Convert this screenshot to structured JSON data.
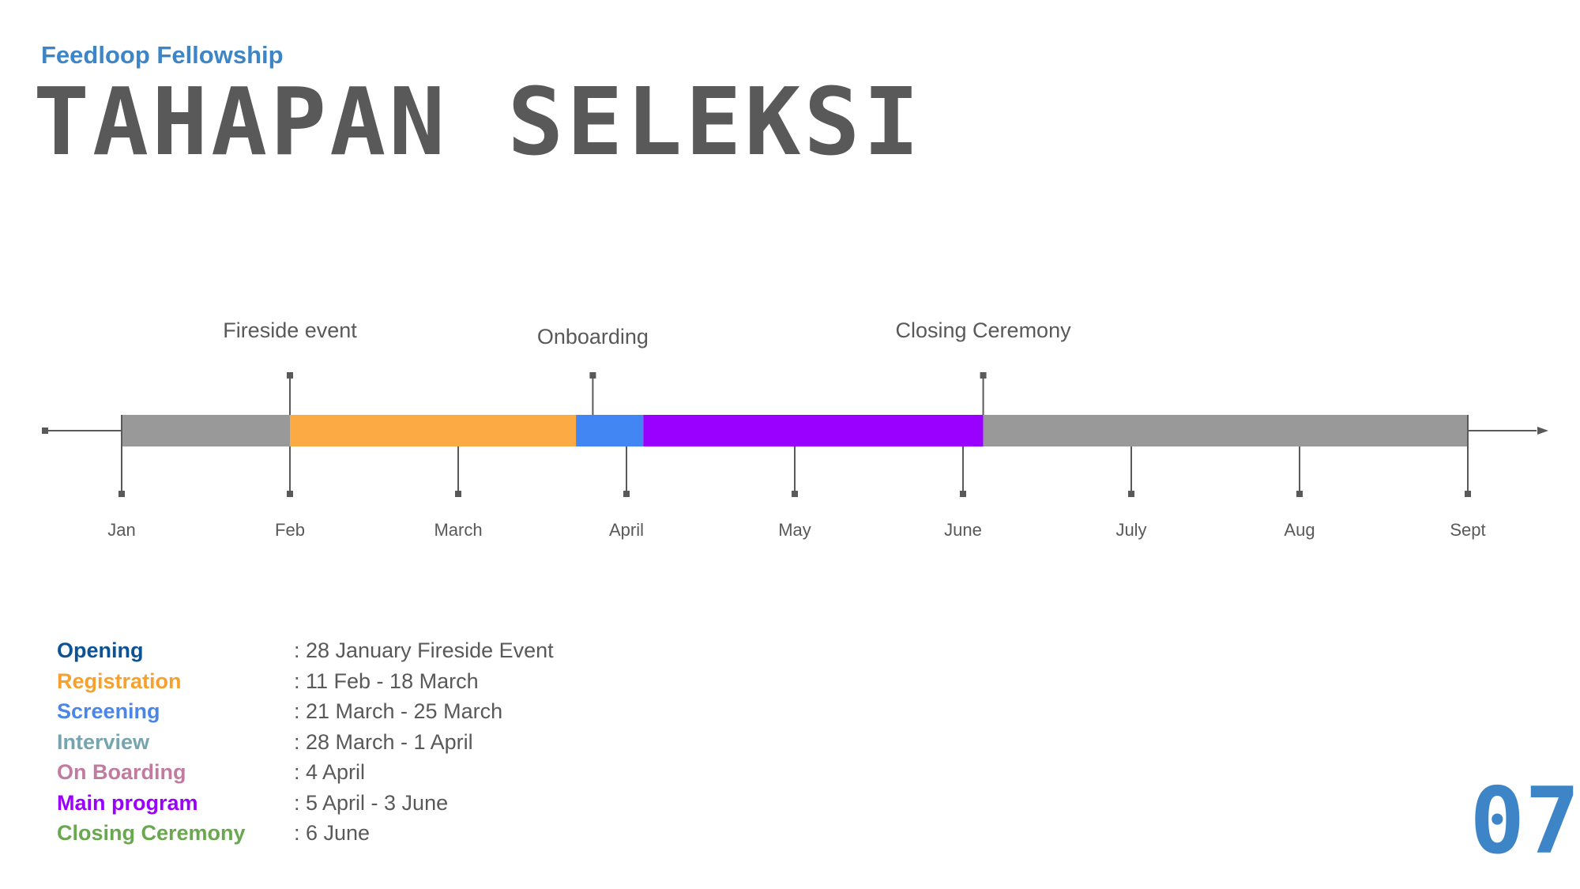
{
  "header": {
    "subtitle": "Feedloop Fellowship",
    "title": "TAHAPAN SELEKSI"
  },
  "chart_data": {
    "type": "timeline",
    "months": [
      "Jan",
      "Feb",
      "March",
      "April",
      "May",
      "June",
      "July",
      "Aug",
      "Sept"
    ],
    "segments": [
      {
        "start": 0.0,
        "end": 1.0,
        "color": "#999999"
      },
      {
        "start": 1.0,
        "end": 2.7,
        "color": "#fbaa44"
      },
      {
        "start": 2.7,
        "end": 3.1,
        "color": "#4286f4"
      },
      {
        "start": 3.1,
        "end": 5.12,
        "color": "#9900ff"
      },
      {
        "start": 5.12,
        "end": 8.0,
        "color": "#999999"
      }
    ],
    "markers": [
      {
        "label": "Fireside event",
        "position": 1.0
      },
      {
        "label": "Onboarding",
        "position": 2.8
      },
      {
        "label": "Closing Ceremony",
        "position": 5.12
      }
    ]
  },
  "legend": [
    {
      "label": "Opening",
      "value": ": 28 January Fireside Event",
      "color": "#0b5394"
    },
    {
      "label": "Registration",
      "value": ": 11 Feb - 18 March",
      "color": "#f6a12e"
    },
    {
      "label": "Screening",
      "value": ": 21 March - 25 March",
      "color": "#4a86e8"
    },
    {
      "label": "Interview",
      "value": ": 28 March - 1 April",
      "color": "#76a5af"
    },
    {
      "label": "On Boarding",
      "value": ": 4 April",
      "color": "#c27ba0"
    },
    {
      "label": "Main program",
      "value": ": 5 April - 3 June",
      "color": "#9900ff"
    },
    {
      "label": "Closing Ceremony",
      "value": ": 6 June",
      "color": "#6aa84f"
    }
  ],
  "page_number": "07"
}
